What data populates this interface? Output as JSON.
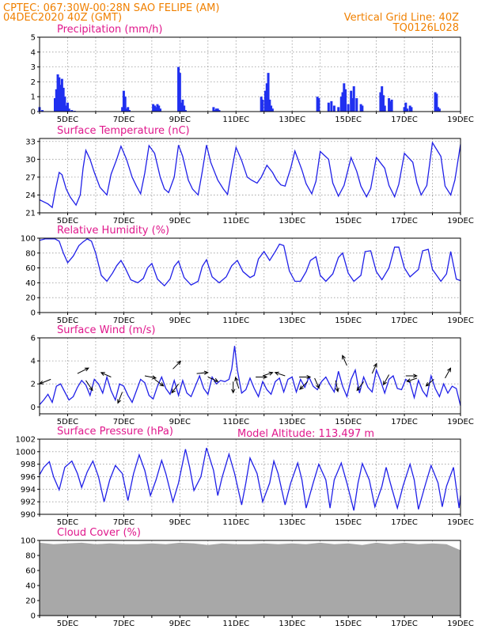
{
  "header": {
    "line1": "CPTEC:   067:30W-00:28N   SAO FELIPE (AM)",
    "line2": "04DEC2020 40Z (GMT)",
    "grid_note": "Vertical Grid Line: 40Z",
    "code": "TQ0126L028",
    "altitude": "Model Altitude: 113.497 m"
  },
  "colors": {
    "header": "#f08000",
    "title": "#e0188c",
    "line": "#2020e8",
    "bars": "#2030f0",
    "cloud": "#a8a8a8",
    "arrow": "#000000"
  },
  "x_axis": {
    "labels": [
      "5DEC",
      "7DEC",
      "9DEC",
      "11DEC",
      "13DEC",
      "15DEC",
      "17DEC",
      "19DEC"
    ],
    "day_start": 4,
    "day_end": 19
  },
  "chart_data": [
    {
      "id": "precip",
      "type": "bar",
      "title": "Precipitation (mm/h)",
      "ylim": [
        0,
        5
      ],
      "yticks": [
        0,
        1,
        2,
        3,
        4,
        5
      ],
      "grid": true,
      "x_unit": "day of December 2020",
      "x": [
        4.0,
        4.1,
        4.55,
        4.6,
        4.65,
        4.7,
        4.75,
        4.8,
        4.85,
        4.9,
        4.95,
        5.0,
        5.05,
        5.15,
        5.25,
        6.95,
        7.0,
        7.05,
        7.1,
        7.15,
        7.2,
        8.05,
        8.1,
        8.15,
        8.2,
        8.25,
        8.3,
        8.95,
        9.0,
        9.05,
        9.1,
        9.15,
        9.2,
        10.2,
        10.25,
        10.3,
        10.35,
        10.4,
        11.9,
        11.95,
        12.05,
        12.1,
        12.15,
        12.2,
        12.25,
        12.3,
        13.9,
        13.95,
        14.3,
        14.4,
        14.5,
        14.65,
        14.75,
        14.8,
        14.85,
        14.9,
        15.0,
        15.1,
        15.15,
        15.2,
        15.3,
        15.45,
        15.5,
        16.15,
        16.2,
        16.25,
        16.3,
        16.45,
        16.5,
        16.55,
        17.0,
        17.05,
        17.1,
        17.2,
        17.25,
        18.1,
        18.15,
        18.2,
        18.25
      ],
      "values": [
        0.3,
        0.1,
        0.9,
        1.5,
        2.5,
        2.3,
        1.8,
        2.2,
        1.6,
        1.0,
        0.4,
        0.6,
        0.2,
        0.1,
        0.05,
        0.3,
        1.4,
        1.0,
        0.2,
        0.3,
        0.1,
        0.5,
        0.4,
        0.3,
        0.5,
        0.4,
        0.2,
        3.0,
        2.6,
        0.6,
        0.8,
        0.4,
        0.1,
        0.3,
        0.1,
        0.2,
        0.2,
        0.1,
        1.0,
        0.8,
        1.4,
        1.9,
        2.6,
        0.8,
        0.4,
        0.2,
        1.0,
        0.9,
        0.6,
        0.7,
        0.4,
        0.3,
        1.0,
        1.3,
        1.9,
        1.5,
        0.5,
        1.4,
        0.9,
        1.7,
        0.9,
        0.5,
        0.4,
        1.3,
        1.7,
        1.1,
        0.4,
        0.9,
        0.7,
        0.8,
        0.3,
        0.6,
        0.2,
        0.4,
        0.3,
        1.3,
        1.2,
        0.3,
        0.2
      ]
    },
    {
      "id": "temp",
      "type": "line",
      "title": "Surface Temperature (nC)",
      "ylim": [
        21,
        33.5
      ],
      "yticks": [
        21,
        24,
        27,
        30,
        33
      ],
      "grid": true,
      "x_unit": "day of December 2020",
      "x": [
        4.0,
        4.3,
        4.45,
        4.55,
        4.7,
        4.8,
        4.95,
        5.1,
        5.3,
        5.45,
        5.55,
        5.65,
        5.8,
        5.95,
        6.15,
        6.4,
        6.55,
        6.75,
        6.9,
        7.1,
        7.3,
        7.45,
        7.6,
        7.75,
        7.9,
        8.1,
        8.3,
        8.45,
        8.6,
        8.8,
        8.95,
        9.1,
        9.3,
        9.45,
        9.65,
        9.8,
        9.95,
        10.1,
        10.35,
        10.55,
        10.7,
        10.85,
        11.0,
        11.2,
        11.4,
        11.55,
        11.75,
        11.9,
        12.1,
        12.3,
        12.45,
        12.6,
        12.75,
        12.95,
        13.1,
        13.35,
        13.5,
        13.7,
        13.85,
        14.0,
        14.3,
        14.45,
        14.65,
        14.85,
        15.1,
        15.3,
        15.45,
        15.65,
        15.8,
        16.0,
        16.3,
        16.45,
        16.65,
        16.8,
        17.0,
        17.3,
        17.45,
        17.6,
        17.8,
        18.0,
        18.3,
        18.45,
        18.65,
        18.8,
        19.0
      ],
      "values": [
        23.2,
        22.5,
        21.9,
        24.5,
        27.8,
        27.4,
        25.0,
        23.6,
        22.3,
        24.0,
        28.5,
        31.5,
        30.0,
        27.8,
        25.3,
        24.0,
        27.5,
        30.0,
        32.2,
        30.0,
        27.0,
        25.5,
        24.2,
        27.7,
        32.3,
        31.0,
        27.0,
        25.0,
        24.4,
        27.0,
        32.4,
        30.5,
        26.5,
        25.0,
        24.0,
        28.0,
        32.4,
        29.5,
        26.5,
        25.0,
        24.1,
        28.2,
        32.0,
        29.8,
        27.0,
        26.5,
        26.0,
        27.0,
        29.0,
        27.8,
        26.5,
        25.7,
        25.5,
        28.5,
        31.4,
        28.2,
        25.9,
        24.2,
        26.3,
        31.3,
        30.0,
        26.0,
        23.8,
        25.6,
        30.3,
        28.0,
        25.5,
        23.7,
        25.1,
        30.3,
        28.5,
        25.6,
        23.7,
        25.8,
        31.0,
        29.5,
        26.0,
        24.0,
        25.6,
        32.8,
        30.5,
        25.5,
        24.0,
        26.5,
        32.5
      ]
    },
    {
      "id": "rh",
      "type": "line",
      "title": "Relative Humidity (%)",
      "ylim": [
        0,
        100
      ],
      "yticks": [
        0,
        20,
        40,
        60,
        80,
        100
      ],
      "grid": true,
      "x_unit": "day of December 2020",
      "x": [
        4.0,
        4.2,
        4.4,
        4.55,
        4.7,
        4.85,
        5.0,
        5.2,
        5.4,
        5.55,
        5.7,
        5.85,
        6.0,
        6.2,
        6.4,
        6.6,
        6.75,
        6.9,
        7.05,
        7.25,
        7.5,
        7.7,
        7.85,
        8.0,
        8.2,
        8.45,
        8.65,
        8.8,
        8.95,
        9.15,
        9.4,
        9.65,
        9.8,
        9.95,
        10.15,
        10.4,
        10.65,
        10.85,
        11.05,
        11.25,
        11.5,
        11.65,
        11.8,
        12.0,
        12.2,
        12.4,
        12.55,
        12.7,
        12.9,
        13.1,
        13.3,
        13.5,
        13.65,
        13.85,
        14.0,
        14.2,
        14.45,
        14.65,
        14.8,
        15.0,
        15.2,
        15.45,
        15.6,
        15.8,
        16.0,
        16.2,
        16.45,
        16.65,
        16.8,
        17.0,
        17.2,
        17.5,
        17.65,
        17.85,
        18.0,
        18.3,
        18.5,
        18.65,
        18.85,
        19.0
      ],
      "values": [
        97,
        99,
        99,
        99,
        96,
        80,
        67,
        76,
        90,
        95,
        99,
        96,
        80,
        50,
        42,
        53,
        63,
        70,
        60,
        44,
        40,
        46,
        60,
        66,
        45,
        36,
        45,
        62,
        69,
        47,
        37,
        42,
        62,
        71,
        48,
        40,
        48,
        63,
        70,
        55,
        47,
        50,
        72,
        82,
        70,
        82,
        92,
        90,
        56,
        42,
        42,
        55,
        70,
        75,
        50,
        42,
        52,
        74,
        80,
        53,
        42,
        50,
        82,
        83,
        55,
        44,
        60,
        88,
        88,
        60,
        48,
        58,
        83,
        85,
        58,
        42,
        52,
        82,
        45,
        43
      ]
    },
    {
      "id": "wind",
      "type": "line",
      "title": "Surface Wind (m/s)",
      "ylim": [
        -0.6,
        6
      ],
      "yticks": [
        0,
        2,
        4,
        6
      ],
      "grid": true,
      "x_unit": "day of December 2020",
      "x": [
        4.0,
        4.15,
        4.3,
        4.45,
        4.6,
        4.75,
        4.9,
        5.05,
        5.2,
        5.35,
        5.5,
        5.65,
        5.8,
        5.95,
        6.1,
        6.25,
        6.4,
        6.55,
        6.7,
        6.85,
        7.0,
        7.15,
        7.3,
        7.45,
        7.6,
        7.75,
        7.9,
        8.05,
        8.2,
        8.35,
        8.5,
        8.65,
        8.8,
        8.95,
        9.1,
        9.25,
        9.4,
        9.55,
        9.7,
        9.85,
        10.0,
        10.15,
        10.3,
        10.45,
        10.6,
        10.75,
        10.85,
        10.95,
        11.05,
        11.2,
        11.35,
        11.5,
        11.65,
        11.8,
        11.95,
        12.1,
        12.25,
        12.4,
        12.55,
        12.7,
        12.85,
        13.0,
        13.15,
        13.3,
        13.45,
        13.6,
        13.75,
        13.9,
        14.05,
        14.2,
        14.35,
        14.5,
        14.65,
        14.8,
        14.95,
        15.1,
        15.25,
        15.4,
        15.55,
        15.7,
        15.85,
        16.0,
        16.15,
        16.3,
        16.45,
        16.6,
        16.75,
        16.9,
        17.05,
        17.2,
        17.35,
        17.5,
        17.65,
        17.8,
        17.95,
        18.1,
        18.25,
        18.4,
        18.55,
        18.7,
        18.85,
        19.0
      ],
      "values": [
        0.2,
        0.6,
        1.1,
        0.4,
        1.8,
        2.0,
        1.3,
        0.6,
        0.9,
        1.7,
        2.3,
        1.9,
        1.0,
        2.4,
        2.0,
        1.2,
        2.6,
        1.4,
        0.6,
        2.0,
        1.8,
        1.0,
        0.4,
        1.4,
        2.4,
        2.1,
        1.0,
        0.7,
        1.8,
        2.6,
        1.6,
        1.1,
        2.3,
        1.0,
        2.3,
        1.2,
        0.9,
        1.8,
        2.7,
        1.6,
        1.1,
        2.6,
        2.0,
        2.3,
        2.2,
        2.4,
        3.3,
        5.3,
        3.2,
        1.2,
        1.5,
        2.5,
        1.6,
        0.9,
        2.2,
        1.5,
        1.1,
        2.2,
        2.5,
        1.3,
        2.4,
        2.6,
        1.3,
        2.4,
        1.7,
        2.6,
        1.8,
        1.5,
        2.2,
        2.6,
        1.9,
        1.3,
        3.1,
        1.8,
        0.9,
        2.4,
        3.2,
        1.2,
        2.6,
        1.7,
        1.3,
        3.2,
        2.3,
        1.2,
        2.4,
        2.7,
        1.6,
        1.5,
        2.4,
        2.1,
        0.8,
        2.3,
        1.4,
        0.9,
        2.7,
        1.6,
        0.9,
        2.0,
        1.2,
        1.8,
        1.6,
        0.1
      ],
      "arrows": [
        {
          "x": 4.4,
          "y": 2.4,
          "u": -1,
          "v": -0.4
        },
        {
          "x": 5.35,
          "y": 2.9,
          "u": 1,
          "v": 0.5
        },
        {
          "x": 5.65,
          "y": 2.3,
          "u": 0.6,
          "v": -0.9
        },
        {
          "x": 6.55,
          "y": 2.6,
          "u": -0.9,
          "v": 0.4
        },
        {
          "x": 6.95,
          "y": 1.3,
          "u": -0.4,
          "v": -1
        },
        {
          "x": 7.75,
          "y": 2.7,
          "u": 1,
          "v": -0.2
        },
        {
          "x": 8.1,
          "y": 2.4,
          "u": 0.8,
          "v": -0.6
        },
        {
          "x": 8.75,
          "y": 3.3,
          "u": 0.7,
          "v": 0.7
        },
        {
          "x": 8.95,
          "y": 2.0,
          "u": -0.6,
          "v": -0.8
        },
        {
          "x": 9.6,
          "y": 2.9,
          "u": 1,
          "v": 0.1
        },
        {
          "x": 10.0,
          "y": 2.6,
          "u": 0.9,
          "v": -0.4
        },
        {
          "x": 10.9,
          "y": 2.2,
          "u": 0,
          "v": -1
        },
        {
          "x": 11.1,
          "y": 1.6,
          "u": -0.3,
          "v": 1
        },
        {
          "x": 11.7,
          "y": 2.6,
          "u": 1,
          "v": 0
        },
        {
          "x": 11.95,
          "y": 2.7,
          "u": 0.9,
          "v": 0.3
        },
        {
          "x": 12.75,
          "y": 2.7,
          "u": -0.9,
          "v": 0.3
        },
        {
          "x": 13.25,
          "y": 2.6,
          "u": 1,
          "v": 0
        },
        {
          "x": 13.55,
          "y": 2.2,
          "u": -0.7,
          "v": -0.7
        },
        {
          "x": 13.8,
          "y": 2.5,
          "u": 0.4,
          "v": -0.9
        },
        {
          "x": 14.55,
          "y": 2.3,
          "u": 0.2,
          "v": -1
        },
        {
          "x": 14.95,
          "y": 3.6,
          "u": -0.4,
          "v": 0.9
        },
        {
          "x": 15.55,
          "y": 2.2,
          "u": -0.6,
          "v": -0.8
        },
        {
          "x": 15.85,
          "y": 2.9,
          "u": 0.4,
          "v": 0.9
        },
        {
          "x": 16.45,
          "y": 2.8,
          "u": -0.5,
          "v": -0.9
        },
        {
          "x": 17.05,
          "y": 2.7,
          "u": 1,
          "v": 0
        },
        {
          "x": 17.45,
          "y": 2.5,
          "u": -0.9,
          "v": -0.3
        },
        {
          "x": 18.05,
          "y": 2.4,
          "u": -0.7,
          "v": -0.6
        },
        {
          "x": 18.45,
          "y": 2.5,
          "u": 0.5,
          "v": 0.9
        }
      ]
    },
    {
      "id": "press",
      "type": "line",
      "title": "Surface Pressure (hPa)",
      "ylim": [
        990,
        1002
      ],
      "yticks": [
        990,
        992,
        994,
        996,
        998,
        1000,
        1002
      ],
      "grid": true,
      "x_unit": "day of December 2020",
      "x": [
        4.0,
        4.15,
        4.35,
        4.5,
        4.7,
        4.9,
        5.15,
        5.35,
        5.5,
        5.7,
        5.9,
        6.1,
        6.3,
        6.5,
        6.7,
        6.95,
        7.15,
        7.35,
        7.55,
        7.75,
        7.95,
        8.15,
        8.35,
        8.5,
        8.75,
        8.95,
        9.2,
        9.35,
        9.5,
        9.75,
        9.95,
        10.2,
        10.35,
        10.5,
        10.75,
        10.95,
        11.2,
        11.35,
        11.5,
        11.75,
        11.95,
        12.2,
        12.35,
        12.5,
        12.75,
        12.95,
        13.2,
        13.35,
        13.5,
        13.75,
        13.95,
        14.2,
        14.35,
        14.5,
        14.75,
        14.95,
        15.2,
        15.35,
        15.5,
        15.75,
        15.95,
        16.2,
        16.35,
        16.5,
        16.75,
        16.95,
        17.2,
        17.35,
        17.5,
        17.75,
        17.95,
        18.2,
        18.35,
        18.5,
        18.75,
        18.95,
        19.0
      ],
      "values": [
        996.3,
        997.5,
        998.4,
        996.0,
        993.9,
        997.5,
        998.5,
        996.5,
        994.3,
        996.8,
        998.5,
        996.0,
        992.0,
        995.5,
        997.8,
        996.5,
        992.2,
        996.5,
        999.5,
        997.0,
        993.0,
        995.5,
        998.6,
        996.5,
        992.0,
        995.0,
        1000.4,
        997.5,
        993.8,
        996.0,
        1000.6,
        997.0,
        993.0,
        995.8,
        999.6,
        996.5,
        991.5,
        995.0,
        999.0,
        996.5,
        992.0,
        995.0,
        998.5,
        996.5,
        991.5,
        995.0,
        998.2,
        995.5,
        991.0,
        995.0,
        998.0,
        995.5,
        991.0,
        995.5,
        998.2,
        995.0,
        990.6,
        995.0,
        998.1,
        995.5,
        991.2,
        994.5,
        997.5,
        995.0,
        991.0,
        994.5,
        998.0,
        995.5,
        990.8,
        994.8,
        997.8,
        995.0,
        991.2,
        994.5,
        997.5,
        991.0,
        993.0
      ]
    },
    {
      "id": "cloud",
      "type": "area",
      "title": "Cloud Cover (%)",
      "ylim": [
        0,
        100
      ],
      "yticks": [
        0,
        20,
        40,
        60,
        80,
        100
      ],
      "grid": true,
      "x_unit": "day of December 2020",
      "x": [
        4.0,
        4.5,
        5.0,
        5.5,
        6.0,
        6.5,
        7.0,
        7.5,
        8.0,
        8.5,
        9.0,
        9.5,
        10.0,
        10.5,
        11.0,
        11.5,
        12.0,
        12.5,
        13.0,
        13.5,
        14.0,
        14.5,
        15.0,
        15.5,
        16.0,
        16.5,
        17.0,
        17.5,
        18.0,
        18.5,
        19.0
      ],
      "values": [
        97,
        95,
        96,
        97,
        95,
        96,
        95,
        95,
        96,
        95,
        97,
        96,
        94,
        96,
        95,
        95,
        96,
        95,
        96,
        95,
        97,
        95,
        96,
        94,
        97,
        95,
        97,
        95,
        96,
        95,
        87
      ]
    }
  ]
}
